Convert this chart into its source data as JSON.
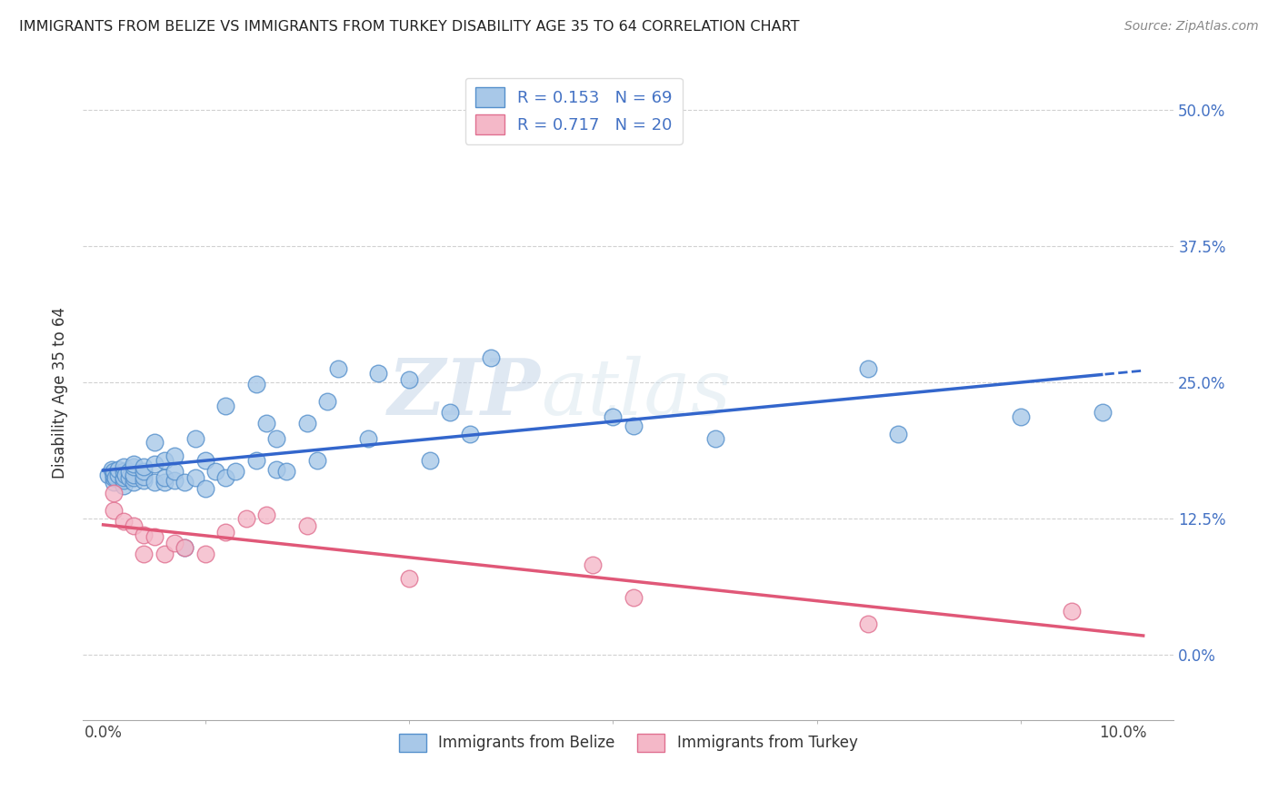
{
  "title": "IMMIGRANTS FROM BELIZE VS IMMIGRANTS FROM TURKEY DISABILITY AGE 35 TO 64 CORRELATION CHART",
  "source": "Source: ZipAtlas.com",
  "ylabel": "Disability Age 35 to 64",
  "ylim": [
    -0.06,
    0.54
  ],
  "xlim": [
    -0.002,
    0.105
  ],
  "legend_belize": "Immigrants from Belize",
  "legend_turkey": "Immigrants from Turkey",
  "R_belize": 0.153,
  "N_belize": 69,
  "R_turkey": 0.717,
  "N_turkey": 20,
  "color_belize": "#a8c8e8",
  "color_belize_edge": "#5590cc",
  "color_belize_line": "#3366cc",
  "color_turkey": "#f4b8c8",
  "color_turkey_edge": "#e07090",
  "color_turkey_line": "#e05878",
  "watermark_zip": "ZIP",
  "watermark_atlas": "atlas",
  "belize_x": [
    0.0005,
    0.0008,
    0.001,
    0.001,
    0.001,
    0.001,
    0.0012,
    0.0015,
    0.0015,
    0.002,
    0.002,
    0.002,
    0.002,
    0.002,
    0.0022,
    0.0025,
    0.0025,
    0.003,
    0.003,
    0.003,
    0.003,
    0.003,
    0.004,
    0.004,
    0.004,
    0.004,
    0.005,
    0.005,
    0.005,
    0.006,
    0.006,
    0.006,
    0.007,
    0.007,
    0.007,
    0.008,
    0.008,
    0.009,
    0.009,
    0.01,
    0.01,
    0.011,
    0.012,
    0.012,
    0.013,
    0.015,
    0.015,
    0.016,
    0.017,
    0.017,
    0.018,
    0.02,
    0.021,
    0.022,
    0.023,
    0.026,
    0.027,
    0.03,
    0.032,
    0.034,
    0.036,
    0.038,
    0.05,
    0.052,
    0.06,
    0.075,
    0.078,
    0.09,
    0.098
  ],
  "belize_y": [
    0.165,
    0.17,
    0.158,
    0.162,
    0.165,
    0.168,
    0.162,
    0.165,
    0.17,
    0.155,
    0.16,
    0.162,
    0.168,
    0.172,
    0.165,
    0.162,
    0.168,
    0.158,
    0.162,
    0.165,
    0.172,
    0.175,
    0.16,
    0.163,
    0.168,
    0.172,
    0.158,
    0.175,
    0.195,
    0.158,
    0.162,
    0.178,
    0.16,
    0.168,
    0.182,
    0.098,
    0.158,
    0.162,
    0.198,
    0.152,
    0.178,
    0.168,
    0.162,
    0.228,
    0.168,
    0.178,
    0.248,
    0.212,
    0.17,
    0.198,
    0.168,
    0.212,
    0.178,
    0.232,
    0.262,
    0.198,
    0.258,
    0.252,
    0.178,
    0.222,
    0.202,
    0.272,
    0.218,
    0.21,
    0.198,
    0.262,
    0.202,
    0.218,
    0.222
  ],
  "turkey_x": [
    0.001,
    0.001,
    0.002,
    0.003,
    0.004,
    0.004,
    0.005,
    0.006,
    0.007,
    0.008,
    0.01,
    0.012,
    0.014,
    0.016,
    0.02,
    0.03,
    0.048,
    0.052,
    0.075,
    0.095
  ],
  "turkey_y": [
    0.132,
    0.148,
    0.122,
    0.118,
    0.11,
    0.092,
    0.108,
    0.092,
    0.102,
    0.098,
    0.092,
    0.112,
    0.125,
    0.128,
    0.118,
    0.07,
    0.082,
    0.052,
    0.028,
    0.04
  ]
}
